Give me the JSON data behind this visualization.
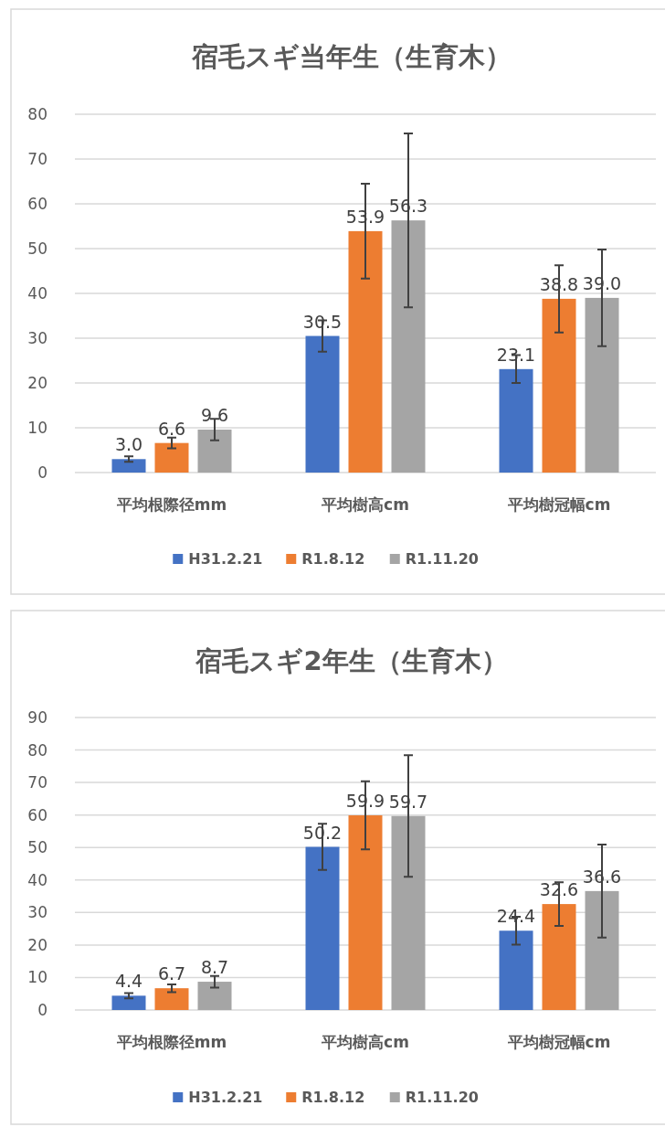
{
  "chart_data": [
    {
      "type": "bar",
      "title": "宿毛スギ当年生（生育木）",
      "categories": [
        "平均根際径mm",
        "平均樹高cm",
        "平均樹冠幅cm"
      ],
      "ylim": [
        0,
        80
      ],
      "yticks": [
        0,
        10,
        20,
        30,
        40,
        50,
        60,
        70,
        80
      ],
      "grid": "y",
      "legend": "bottom",
      "series": [
        {
          "name": "H31.2.21",
          "color": "#4472c4",
          "values": [
            3.0,
            30.5,
            23.1
          ],
          "errors": [
            0.6,
            3.5,
            3.1
          ],
          "value_labels": [
            "3.0",
            "30.5",
            "23.1"
          ]
        },
        {
          "name": "R1.8.12",
          "color": "#ed7d31",
          "values": [
            6.6,
            53.9,
            38.8
          ],
          "errors": [
            1.2,
            10.6,
            7.5
          ],
          "value_labels": [
            "6.6",
            "53.9",
            "38.8"
          ]
        },
        {
          "name": "R1.11.20",
          "color": "#a5a5a5",
          "values": [
            9.6,
            56.3,
            39.0
          ],
          "errors": [
            2.4,
            19.4,
            10.8
          ],
          "value_labels": [
            "9.6",
            "56.3",
            "39.0"
          ]
        }
      ]
    },
    {
      "type": "bar",
      "title": "宿毛スギ2年生（生育木）",
      "categories": [
        "平均根際径mm",
        "平均樹高cm",
        "平均樹冠幅cm"
      ],
      "ylim": [
        0,
        90
      ],
      "yticks": [
        0,
        10,
        20,
        30,
        40,
        50,
        60,
        70,
        80,
        90
      ],
      "grid": "y",
      "legend": "bottom",
      "series": [
        {
          "name": "H31.2.21",
          "color": "#4472c4",
          "values": [
            4.4,
            50.2,
            24.4
          ],
          "errors": [
            0.8,
            7.1,
            4.3
          ],
          "value_labels": [
            "4.4",
            "50.2",
            "24.4"
          ]
        },
        {
          "name": "R1.8.12",
          "color": "#ed7d31",
          "values": [
            6.7,
            59.9,
            32.6
          ],
          "errors": [
            1.2,
            10.5,
            6.7
          ],
          "value_labels": [
            "6.7",
            "59.9",
            "32.6"
          ]
        },
        {
          "name": "R1.11.20",
          "color": "#a5a5a5",
          "values": [
            8.7,
            59.7,
            36.6
          ],
          "errors": [
            1.8,
            18.7,
            14.3
          ],
          "value_labels": [
            "8.7",
            "59.7",
            "36.6"
          ]
        }
      ]
    }
  ]
}
